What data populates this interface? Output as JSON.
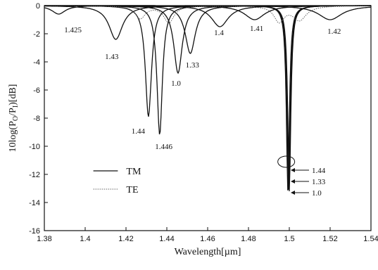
{
  "chart_data": {
    "type": "line",
    "xlabel": "Wavelength[µm]",
    "ylabel_parts": {
      "base": "10log(P",
      "sub1": "O",
      "mid": "/P",
      "sub2": "I",
      "end": ")[dB]"
    },
    "xlim": [
      1.38,
      1.54
    ],
    "ylim": [
      -16,
      0
    ],
    "xticks": [
      1.38,
      1.4,
      1.42,
      1.44,
      1.46,
      1.48,
      1.5,
      1.52,
      1.54
    ],
    "xtick_labels": [
      "1.38",
      "1.4",
      "1.42",
      "1.44",
      "1.46",
      "1.48",
      "1.5",
      "1.52",
      "1.54"
    ],
    "yticks": [
      0,
      -2,
      -4,
      -6,
      -8,
      -10,
      -12,
      -14,
      -16
    ],
    "ytick_labels": [
      "0",
      "-2",
      "-4",
      "-6",
      "-8",
      "-10",
      "-12",
      "-14",
      "-16"
    ],
    "legend": {
      "position": "center-left",
      "entries": [
        {
          "label": "TM",
          "style": "solid"
        },
        {
          "label": "TE",
          "style": "dotted"
        }
      ]
    },
    "series": [
      {
        "label": "1.425",
        "style": "solid",
        "dips": [
          {
            "x": 1.387,
            "depth": -0.6,
            "width": 0.004
          }
        ],
        "label_at": [
          1.394,
          -1.9
        ]
      },
      {
        "label": "1.43",
        "style": "solid",
        "dips": [
          {
            "x": 1.415,
            "depth": -2.4,
            "width": 0.004
          }
        ],
        "label_at": [
          1.413,
          -3.8
        ]
      },
      {
        "label": "1.44",
        "style": "solid",
        "dips": [
          {
            "x": 1.431,
            "depth": -7.9,
            "width": 0.0018
          }
        ],
        "label_at": [
          1.426,
          -9.1
        ]
      },
      {
        "label": "1.446",
        "style": "solid",
        "dips": [
          {
            "x": 1.4365,
            "depth": -9.2,
            "width": 0.0016
          }
        ],
        "label_at": [
          1.4385,
          -10.2
        ]
      },
      {
        "label": "1.0",
        "style": "solid",
        "dips": [
          {
            "x": 1.4455,
            "depth": -4.8,
            "width": 0.0025
          }
        ],
        "label_at": [
          1.4445,
          -5.7
        ]
      },
      {
        "label": "1.33",
        "style": "solid",
        "dips": [
          {
            "x": 1.4515,
            "depth": -3.4,
            "width": 0.003
          }
        ],
        "label_at": [
          1.4525,
          -4.4
        ]
      },
      {
        "label": "1.4",
        "style": "solid",
        "dips": [
          {
            "x": 1.466,
            "depth": -1.5,
            "width": 0.005
          }
        ],
        "label_at": [
          1.4655,
          -2.1
        ]
      },
      {
        "label": "1.41",
        "style": "solid",
        "dips": [
          {
            "x": 1.483,
            "depth": -1.0,
            "width": 0.006
          }
        ],
        "label_at": [
          1.484,
          -1.8
        ]
      },
      {
        "label": "1.42",
        "style": "solid",
        "dips": [
          {
            "x": 1.52,
            "depth": -1.0,
            "width": 0.007
          }
        ],
        "label_at": [
          1.522,
          -2.0
        ]
      },
      {
        "label": "1.44",
        "style": "solid",
        "dips": [
          {
            "x": 1.4993,
            "depth": -13.2,
            "width": 0.0009
          }
        ],
        "label_at": null
      },
      {
        "label": "1.33",
        "style": "solid",
        "dips": [
          {
            "x": 1.4997,
            "depth": -13.2,
            "width": 0.0009
          }
        ],
        "label_at": null
      },
      {
        "label": "1.0",
        "style": "solid",
        "dips": [
          {
            "x": 1.5,
            "depth": -13.2,
            "width": 0.0009
          }
        ],
        "label_at": null
      },
      {
        "label": "TE",
        "style": "dotted",
        "dips": [
          {
            "x": 1.427,
            "depth": -0.9,
            "width": 0.003
          },
          {
            "x": 1.441,
            "depth": -1.2,
            "width": 0.003
          },
          {
            "x": 1.495,
            "depth": -1.1,
            "width": 0.003
          },
          {
            "x": 1.505,
            "depth": -1.0,
            "width": 0.004
          }
        ],
        "label_at": null
      }
    ],
    "annotations": [
      {
        "text": "1.44",
        "y": -11.7
      },
      {
        "text": "1.33",
        "y": -12.5
      },
      {
        "text": "1.0",
        "y": -13.3
      }
    ],
    "ellipse": {
      "x": 1.4985,
      "y": -11.1
    }
  }
}
